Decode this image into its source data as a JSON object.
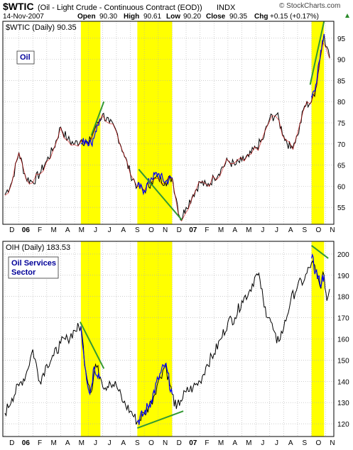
{
  "header": {
    "symbol": "$WTIC",
    "description": "(Oil - Light Crude - Continuous Contract (EOD))",
    "exchange": "INDX",
    "date": "14-Nov-2007",
    "open_label": "Open",
    "open": "90.30",
    "high_label": "High",
    "high": "90.61",
    "low_label": "Low",
    "low": "90.20",
    "close_label": "Close",
    "close": "90.35",
    "chg_label": "Chg",
    "chg": "+0.15 (+0.17%)",
    "source": "© StockCharts.com"
  },
  "colors": {
    "highlight": "#ffff00",
    "oil_line": "#000000",
    "oil_down": "#cc0000",
    "oih_line": "#000000",
    "highlight_line": "#0000ff",
    "trendline": "#339933",
    "label_text": "#000099",
    "grid": "#b0b0b0",
    "border": "#000000"
  },
  "month_labels": [
    "D",
    "06",
    "F",
    "M",
    "A",
    "M",
    "J",
    "J",
    "A",
    "S",
    "O",
    "N",
    "D",
    "07",
    "F",
    "M",
    "A",
    "M",
    "J",
    "J",
    "A",
    "S",
    "O",
    "N"
  ],
  "chart_data": [
    {
      "type": "line",
      "title": "$WTIC (Daily) 90.35",
      "label_box": "Oil",
      "x_unit": "months (0 = Dec 2005, 23 = Nov 2007)",
      "ylim": [
        51,
        99
      ],
      "yticks": [
        55,
        60,
        65,
        70,
        75,
        80,
        85,
        90,
        95
      ],
      "grid": true,
      "highlight_regions": [
        [
          5.45,
          6.85
        ],
        [
          9.5,
          12.0
        ],
        [
          22.0,
          22.9
        ]
      ],
      "series": [
        {
          "name": "$WTIC",
          "points": [
            [
              0,
              58
            ],
            [
              0.5,
              61
            ],
            [
              1.0,
              68
            ],
            [
              1.5,
              62
            ],
            [
              2.0,
              61
            ],
            [
              2.5,
              63
            ],
            [
              3.0,
              66
            ],
            [
              3.5,
              69
            ],
            [
              4.0,
              74
            ],
            [
              4.5,
              71
            ],
            [
              5.0,
              70
            ],
            [
              5.5,
              71
            ],
            [
              6.0,
              70
            ],
            [
              6.5,
              74
            ],
            [
              7.0,
              77
            ],
            [
              7.5,
              75
            ],
            [
              8.0,
              73
            ],
            [
              8.5,
              68
            ],
            [
              9.0,
              63
            ],
            [
              9.5,
              60
            ],
            [
              10.0,
              59
            ],
            [
              10.5,
              61
            ],
            [
              11.0,
              62
            ],
            [
              11.5,
              61
            ],
            [
              12.0,
              62
            ],
            [
              12.3,
              57
            ],
            [
              12.6,
              52
            ],
            [
              13.0,
              55
            ],
            [
              13.5,
              58
            ],
            [
              14.0,
              61
            ],
            [
              14.5,
              60
            ],
            [
              15.0,
              62
            ],
            [
              15.5,
              64
            ],
            [
              16.0,
              66
            ],
            [
              16.5,
              65
            ],
            [
              17.0,
              66
            ],
            [
              17.5,
              67
            ],
            [
              18.0,
              69
            ],
            [
              18.5,
              71
            ],
            [
              19.0,
              76
            ],
            [
              19.5,
              77
            ],
            [
              20.0,
              72
            ],
            [
              20.5,
              69
            ],
            [
              21.0,
              72
            ],
            [
              21.5,
              79
            ],
            [
              22.0,
              80
            ],
            [
              22.3,
              83
            ],
            [
              22.6,
              90
            ],
            [
              22.9,
              96
            ],
            [
              23.1,
              93
            ],
            [
              23.3,
              90.35
            ]
          ],
          "highlighted": [
            [
              5.45,
              70
            ],
            [
              5.8,
              71
            ],
            [
              6.2,
              70
            ],
            [
              6.5,
              73
            ],
            [
              6.85,
              76
            ],
            [
              9.5,
              60
            ],
            [
              10.0,
              59
            ],
            [
              10.5,
              62
            ],
            [
              11.0,
              63
            ],
            [
              11.5,
              61
            ],
            [
              12.0,
              62
            ],
            [
              22.0,
              81
            ],
            [
              22.3,
              84
            ],
            [
              22.6,
              90
            ],
            [
              22.9,
              96
            ]
          ]
        }
      ],
      "trendlines": [
        [
          [
            6.2,
            72
          ],
          [
            7.1,
            80
          ]
        ],
        [
          [
            9.6,
            64
          ],
          [
            12.7,
            52
          ]
        ],
        [
          [
            21.9,
            84
          ],
          [
            22.9,
            99
          ]
        ]
      ]
    },
    {
      "type": "line",
      "title": "OIH (Daily) 183.53",
      "label_box": "Oil Services\nSector",
      "x_unit": "months (0 = Dec 2005, 23 = Nov 2007)",
      "ylim": [
        114,
        206
      ],
      "yticks": [
        120,
        130,
        140,
        150,
        160,
        170,
        180,
        190,
        200
      ],
      "grid": true,
      "highlight_regions": [
        [
          5.45,
          6.85
        ],
        [
          9.5,
          12.0
        ],
        [
          22.0,
          22.9
        ]
      ],
      "series": [
        {
          "name": "OIH",
          "points": [
            [
              0,
              125
            ],
            [
              0.5,
              132
            ],
            [
              1.0,
              138
            ],
            [
              1.5,
              143
            ],
            [
              2.0,
              155
            ],
            [
              2.5,
              140
            ],
            [
              3.0,
              148
            ],
            [
              3.5,
              152
            ],
            [
              4.0,
              158
            ],
            [
              4.5,
              160
            ],
            [
              5.0,
              164
            ],
            [
              5.45,
              166
            ],
            [
              5.8,
              145
            ],
            [
              6.2,
              135
            ],
            [
              6.5,
              148
            ],
            [
              6.85,
              142
            ],
            [
              7.2,
              137
            ],
            [
              7.5,
              140
            ],
            [
              8.0,
              138
            ],
            [
              8.5,
              130
            ],
            [
              9.0,
              126
            ],
            [
              9.5,
              121
            ],
            [
              10.0,
              125
            ],
            [
              10.5,
              130
            ],
            [
              11.0,
              140
            ],
            [
              11.5,
              148
            ],
            [
              12.0,
              134
            ],
            [
              12.3,
              127
            ],
            [
              12.6,
              131
            ],
            [
              13.0,
              135
            ],
            [
              13.5,
              137
            ],
            [
              14.0,
              140
            ],
            [
              14.5,
              148
            ],
            [
              15.0,
              153
            ],
            [
              15.5,
              160
            ],
            [
              16.0,
              168
            ],
            [
              16.5,
              170
            ],
            [
              17.0,
              178
            ],
            [
              17.5,
              182
            ],
            [
              18.0,
              190
            ],
            [
              18.3,
              188
            ],
            [
              18.6,
              175
            ],
            [
              19.0,
              170
            ],
            [
              19.5,
              158
            ],
            [
              20.0,
              165
            ],
            [
              20.5,
              178
            ],
            [
              21.0,
              185
            ],
            [
              21.5,
              188
            ],
            [
              22.0,
              196
            ],
            [
              22.3,
              192
            ],
            [
              22.6,
              185
            ],
            [
              22.9,
              190
            ],
            [
              23.1,
              178
            ],
            [
              23.3,
              183.53
            ]
          ],
          "highlighted": [
            [
              5.45,
              166
            ],
            [
              5.8,
              145
            ],
            [
              6.1,
              134
            ],
            [
              6.4,
              147
            ],
            [
              6.85,
              142
            ],
            [
              9.5,
              121
            ],
            [
              10.0,
              125
            ],
            [
              10.5,
              131
            ],
            [
              11.0,
              141
            ],
            [
              11.5,
              148
            ],
            [
              12.0,
              134
            ],
            [
              22.0,
              198
            ],
            [
              22.3,
              192
            ],
            [
              22.6,
              186
            ],
            [
              22.9,
              190
            ]
          ]
        }
      ],
      "trendlines": [
        [
          [
            5.4,
            168
          ],
          [
            7.1,
            146
          ]
        ],
        [
          [
            9.5,
            118
          ],
          [
            12.8,
            126
          ]
        ],
        [
          [
            22.0,
            204
          ],
          [
            23.2,
            198
          ]
        ]
      ]
    }
  ]
}
